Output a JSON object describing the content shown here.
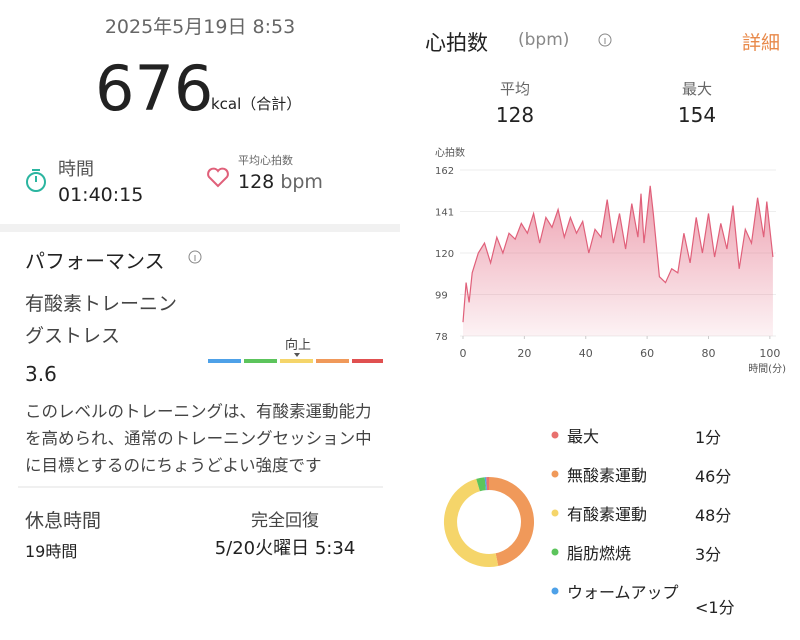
{
  "header": {
    "date": "2025年5月19日 8:53",
    "calories": "676",
    "calories_unit": "kcal（合計）"
  },
  "summary": {
    "duration_label": "時間",
    "duration": "01:40:15",
    "avg_hr_label": "平均心拍数",
    "avg_hr": "128",
    "avg_hr_unit": "bpm"
  },
  "performance": {
    "title": "パフォーマンス",
    "metric_label": "有酸素トレーニングストレス",
    "metric_value": "3.6",
    "scale_marker": "向上",
    "description": "このレベルのトレーニングは、有酸素運動能力を高められ、通常のトレーニングセッション中に目標とするのにちょうどよい強度です"
  },
  "recovery": {
    "rest_label": "休息時間",
    "rest_value": "19時間",
    "full_label": "完全回復",
    "full_value": "5/20火曜日 5:34"
  },
  "heart_rate": {
    "title": "心拍数",
    "unit": "(bpm)",
    "detail": "詳細",
    "avg_label": "平均",
    "avg": "128",
    "max_label": "最大",
    "max": "154"
  },
  "chart_data": [
    {
      "type": "line",
      "y_label": "心拍数",
      "x_label": "時間(分)",
      "color": "#e0607a",
      "grid": true,
      "xlim": [
        -1,
        102
      ],
      "xticks": [
        0,
        20,
        40,
        60,
        80,
        100
      ],
      "ylim": [
        78,
        162
      ],
      "yticks": [
        78,
        99,
        120,
        141,
        162
      ],
      "x": [
        0,
        1,
        2,
        3,
        5,
        7,
        9,
        11,
        13,
        15,
        17,
        19,
        21,
        23,
        25,
        27,
        29,
        31,
        33,
        35,
        37,
        39,
        41,
        43,
        45,
        47,
        49,
        51,
        53,
        55,
        57,
        58,
        59,
        61,
        62,
        64,
        66,
        68,
        70,
        72,
        74,
        76,
        78,
        80,
        82,
        84,
        86,
        88,
        90,
        92,
        94,
        96,
        98,
        99,
        101
      ],
      "values": [
        85,
        105,
        95,
        110,
        120,
        125,
        115,
        128,
        120,
        130,
        127,
        135,
        130,
        140,
        125,
        138,
        133,
        142,
        128,
        138,
        130,
        136,
        120,
        132,
        128,
        147,
        125,
        140,
        122,
        145,
        128,
        150,
        125,
        154,
        140,
        108,
        105,
        112,
        110,
        130,
        115,
        138,
        120,
        140,
        118,
        135,
        122,
        144,
        112,
        132,
        125,
        148,
        128,
        146,
        118
      ]
    },
    {
      "type": "pie",
      "donut": true,
      "categories": [
        "最大",
        "無酸素運動",
        "有酸素運動",
        "脂肪燃焼",
        "ウォームアップ"
      ],
      "values": [
        1,
        46,
        48,
        3,
        0.5
      ],
      "value_labels": [
        "1分",
        "46分",
        "48分",
        "3分",
        "<1分"
      ],
      "colors": [
        "#e8716e",
        "#f0995a",
        "#f5d56a",
        "#5cc45c",
        "#4ea1e8"
      ]
    }
  ]
}
